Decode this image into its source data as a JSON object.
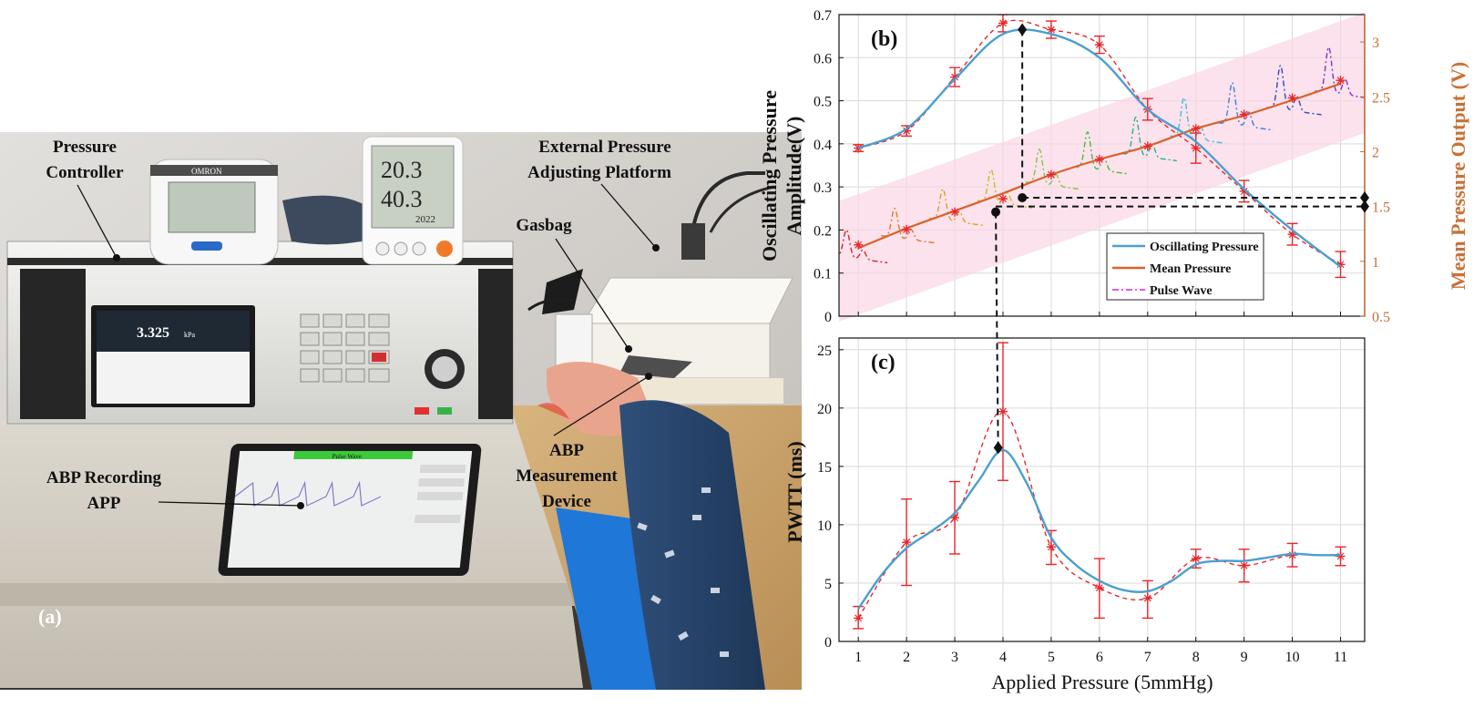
{
  "panel_a": {
    "label": "(a)",
    "annotations": {
      "pressure_controller": [
        "Pressure",
        "Controller"
      ],
      "external_platform": [
        "External Pressure",
        "Adjusting Platform"
      ],
      "gasbag": "Gasbag",
      "abp_device": [
        "ABP",
        "Measurement",
        "Device"
      ],
      "recording_app": [
        "ABP Recording",
        "APP"
      ]
    },
    "photo_text": {
      "brand": "OMRON",
      "thermo_temp": "20.3",
      "thermo_humidity": "40.3",
      "thermo_year": "2022",
      "controller_value": "3.325",
      "controller_unit": "kPa",
      "tablet_title": "Pulse Wave"
    }
  },
  "chart_data": [
    {
      "id": "b",
      "type": "line",
      "panel_label": "(b)",
      "ylabel": "Oscillating Pressure Amplitude(V)",
      "ylabel_lines": [
        "Oscillating Pressure",
        "Amplitude(V)"
      ],
      "y2label": "Mean Pressure Output (V)",
      "xlim": [
        0.6,
        11.5
      ],
      "ylim": [
        0,
        0.7
      ],
      "y2lim": [
        0.5,
        3.25
      ],
      "xticks": [
        1,
        2,
        3,
        4,
        5,
        6,
        7,
        8,
        9,
        10,
        11
      ],
      "yticks": [
        "0",
        "0.1",
        "0.2",
        "0.3",
        "0.4",
        "0.5",
        "0.6",
        "0.7"
      ],
      "y2ticks": [
        "0.5",
        "1",
        "1.5",
        "2",
        "2.5",
        "3"
      ],
      "grid": true,
      "legend_position": "bottom-right",
      "legend": [
        {
          "name": "Oscillating Pressure",
          "color": "#4a9fd0",
          "style": "solid"
        },
        {
          "name": "Mean Pressure",
          "color": "#d9622b",
          "style": "solid"
        },
        {
          "name": "Pulse Wave",
          "color": "#e020e0",
          "style": "dashdot"
        }
      ],
      "oscillating_fit": [
        [
          1,
          0.39
        ],
        [
          2,
          0.435
        ],
        [
          3,
          0.55
        ],
        [
          4,
          0.655
        ],
        [
          5,
          0.655
        ],
        [
          6,
          0.6
        ],
        [
          7,
          0.48
        ],
        [
          8,
          0.405
        ],
        [
          9,
          0.295
        ],
        [
          10,
          0.2
        ],
        [
          11,
          0.115
        ]
      ],
      "oscillating_measured": [
        {
          "x": 1,
          "y": 0.39,
          "err": 0.008
        },
        {
          "x": 2,
          "y": 0.43,
          "err": 0.012
        },
        {
          "x": 3,
          "y": 0.555,
          "err": 0.022
        },
        {
          "x": 4,
          "y": 0.68,
          "err": 0.02
        },
        {
          "x": 5,
          "y": 0.665,
          "err": 0.02
        },
        {
          "x": 6,
          "y": 0.63,
          "err": 0.02
        },
        {
          "x": 7,
          "y": 0.48,
          "err": 0.025
        },
        {
          "x": 8,
          "y": 0.39,
          "err": 0.035
        },
        {
          "x": 9,
          "y": 0.29,
          "err": 0.025
        },
        {
          "x": 10,
          "y": 0.19,
          "err": 0.025
        },
        {
          "x": 11,
          "y": 0.12,
          "err": 0.03
        }
      ],
      "mean_pressure": [
        [
          1,
          1.12
        ],
        [
          2,
          1.3
        ],
        [
          3,
          1.46
        ],
        [
          4,
          1.62
        ],
        [
          5,
          1.79
        ],
        [
          6,
          1.93
        ],
        [
          7,
          2.05
        ],
        [
          8,
          2.21
        ],
        [
          9,
          2.33
        ],
        [
          10,
          2.47
        ],
        [
          11,
          2.62
        ]
      ],
      "mean_markers": [
        [
          1,
          1.15
        ],
        [
          2,
          1.29
        ],
        [
          3,
          1.45
        ],
        [
          4,
          1.57
        ],
        [
          5,
          1.79
        ],
        [
          6,
          1.93
        ],
        [
          7,
          2.05
        ],
        [
          8,
          2.21
        ],
        [
          9,
          2.34
        ],
        [
          10,
          2.49
        ],
        [
          11,
          2.65
        ]
      ],
      "pulse_colors": [
        "#d8262b",
        "#e07820",
        "#e0a020",
        "#b8c41e",
        "#7cc83a",
        "#3fbf3c",
        "#28b08a",
        "#3ac1d8",
        "#3a82d8",
        "#3146c0",
        "#7a36c8",
        "#c030c0"
      ],
      "markers": {
        "peak_diamond": {
          "x": 4.4,
          "y": 0.665
        },
        "dot_left": {
          "x": 3.85,
          "y2": 1.45
        },
        "dot_right": {
          "x": 4.4,
          "y2": 1.58
        },
        "right_diamond_upper": 1.58,
        "right_diamond_lower": 1.5
      }
    },
    {
      "id": "c",
      "type": "line",
      "panel_label": "(c)",
      "ylabel": "PWTT (ms)",
      "xlabel": "Applied Pressure (5mmHg)",
      "xlim": [
        0.6,
        11.5
      ],
      "ylim": [
        0,
        26
      ],
      "xticks": [
        "1",
        "2",
        "3",
        "4",
        "5",
        "6",
        "7",
        "8",
        "9",
        "10",
        "11"
      ],
      "yticks": [
        "0",
        "5",
        "10",
        "15",
        "20",
        "25"
      ],
      "grid": true,
      "fit": [
        [
          1,
          2.8
        ],
        [
          1.5,
          5.8
        ],
        [
          2,
          8.0
        ],
        [
          2.5,
          9.4
        ],
        [
          3,
          11.0
        ],
        [
          3.5,
          13.8
        ],
        [
          4,
          16.4
        ],
        [
          4.5,
          13.5
        ],
        [
          5,
          8.9
        ],
        [
          5.5,
          6.6
        ],
        [
          6,
          5.2
        ],
        [
          6.5,
          4.4
        ],
        [
          7,
          4.3
        ],
        [
          7.5,
          5.2
        ],
        [
          8,
          6.6
        ],
        [
          8.5,
          6.9
        ],
        [
          9,
          6.9
        ],
        [
          9.5,
          7.2
        ],
        [
          10,
          7.5
        ],
        [
          10.5,
          7.4
        ],
        [
          11,
          7.4
        ]
      ],
      "measured": [
        {
          "x": 1,
          "y": 2.0,
          "lo": 1.1,
          "hi": 3.0
        },
        {
          "x": 2,
          "y": 8.5,
          "lo": 4.8,
          "hi": 12.2
        },
        {
          "x": 3,
          "y": 10.6,
          "lo": 7.5,
          "hi": 13.7
        },
        {
          "x": 4,
          "y": 19.7,
          "lo": 13.8,
          "hi": 25.6
        },
        {
          "x": 5,
          "y": 8.1,
          "lo": 6.6,
          "hi": 9.5
        },
        {
          "x": 6,
          "y": 4.6,
          "lo": 2.0,
          "hi": 7.1
        },
        {
          "x": 7,
          "y": 3.7,
          "lo": 2.0,
          "hi": 5.2
        },
        {
          "x": 8,
          "y": 7.1,
          "lo": 6.3,
          "hi": 7.9
        },
        {
          "x": 9,
          "y": 6.5,
          "lo": 5.1,
          "hi": 7.9
        },
        {
          "x": 10,
          "y": 7.4,
          "lo": 6.4,
          "hi": 8.4
        },
        {
          "x": 11,
          "y": 7.3,
          "lo": 6.5,
          "hi": 8.1
        }
      ],
      "marker": {
        "x": 3.9,
        "y": 16.6
      }
    }
  ],
  "colors": {
    "osc": "#4a9fd0",
    "mean": "#d9622b",
    "measured": "#e8262b",
    "mean_axis": "#c87137",
    "grid": "#d9d9d9",
    "band": "#f9d6e6"
  }
}
